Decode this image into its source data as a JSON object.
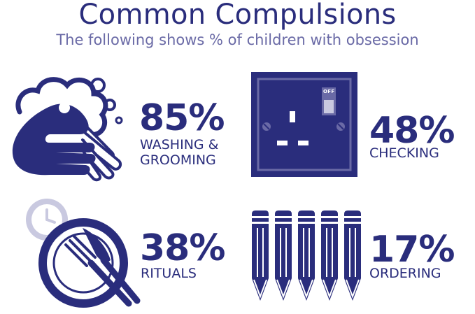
{
  "header": {
    "title": "Common Compulsions",
    "subtitle": "The following shows % of children with obsession"
  },
  "stats": [
    {
      "value": "85%",
      "label": "WASHING &\nGROOMING",
      "icon": "hand-washing-icon"
    },
    {
      "value": "48%",
      "label": "CHECKING",
      "icon": "power-socket-icon"
    },
    {
      "value": "38%",
      "label": "RITUALS",
      "icon": "clock-plate-cutlery-icon"
    },
    {
      "value": "17%",
      "label": "ORDERING",
      "icon": "pencils-icon"
    }
  ],
  "socket": {
    "switch_text": "OFF"
  },
  "colors": {
    "primary": "#2a2d7c",
    "secondary": "#6a6aa6",
    "light": "#c9c9e0"
  }
}
